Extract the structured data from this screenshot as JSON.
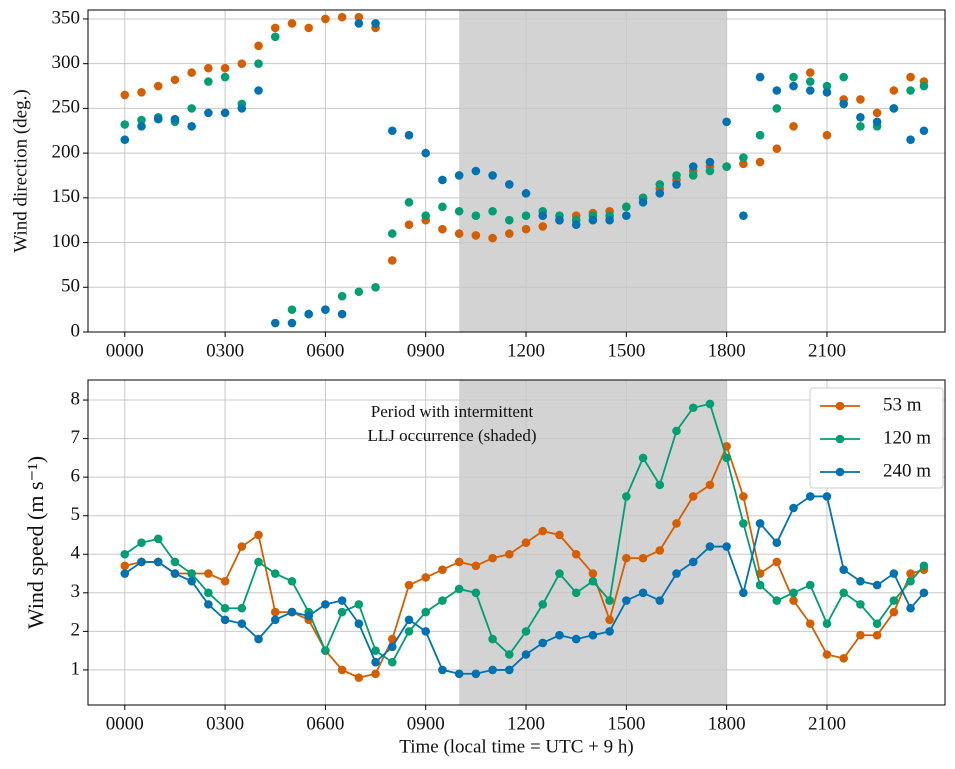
{
  "chart_data": [
    {
      "type": "scatter",
      "ylabel": "Wind direction (deg.)",
      "x": [
        0,
        0.5,
        1,
        1.5,
        2,
        2.5,
        3,
        3.5,
        4,
        4.5,
        5,
        5.5,
        6,
        6.5,
        7,
        7.5,
        8,
        8.5,
        9,
        9.5,
        10,
        10.5,
        11,
        11.5,
        12,
        12.5,
        13,
        13.5,
        14,
        14.5,
        15,
        15.5,
        16,
        16.5,
        17,
        17.5,
        18,
        18.5,
        19,
        19.5,
        20,
        20.5,
        21,
        21.5,
        22,
        22.5,
        23,
        23.5,
        23.9
      ],
      "xlim": [
        -1.1,
        24.53
      ],
      "xticks": [
        {
          "value": 0,
          "label": "0000"
        },
        {
          "value": 3,
          "label": "0300"
        },
        {
          "value": 6,
          "label": "0600"
        },
        {
          "value": 9,
          "label": "0900"
        },
        {
          "value": 12,
          "label": "1200"
        },
        {
          "value": 15,
          "label": "1500"
        },
        {
          "value": 18,
          "label": "1800"
        },
        {
          "value": 21,
          "label": "2100"
        }
      ],
      "ylim": [
        0,
        360
      ],
      "yticks": [
        0,
        50,
        100,
        150,
        200,
        250,
        300,
        350
      ],
      "grid": true,
      "shade": [
        10,
        18
      ],
      "series": [
        {
          "color": "#d55e00",
          "values": [
            265,
            268,
            275,
            282,
            290,
            295,
            295,
            300,
            320,
            340,
            345,
            340,
            350,
            352,
            352,
            340,
            80,
            120,
            125,
            115,
            110,
            108,
            105,
            110,
            115,
            118,
            125,
            130,
            133,
            135,
            140,
            150,
            160,
            170,
            180,
            185,
            185,
            188,
            190,
            205,
            230,
            290,
            220,
            260,
            260,
            245,
            270,
            285,
            280
          ]
        },
        {
          "color": "#009e73",
          "values": [
            232,
            237,
            240,
            235,
            250,
            280,
            285,
            255,
            300,
            330,
            25,
            20,
            25,
            40,
            45,
            50,
            110,
            145,
            130,
            140,
            135,
            130,
            135,
            125,
            130,
            135,
            130,
            125,
            130,
            130,
            140,
            150,
            165,
            175,
            175,
            180,
            185,
            195,
            220,
            250,
            285,
            280,
            275,
            285,
            230,
            230,
            250,
            270,
            275
          ]
        },
        {
          "color": "#0072b2",
          "values": [
            215,
            230,
            238,
            238,
            230,
            245,
            245,
            250,
            270,
            10,
            10,
            20,
            25,
            20,
            345,
            345,
            225,
            220,
            200,
            170,
            175,
            180,
            175,
            165,
            155,
            130,
            125,
            120,
            125,
            125,
            130,
            145,
            155,
            165,
            185,
            190,
            235,
            130,
            285,
            270,
            275,
            270,
            268,
            255,
            240,
            235,
            250,
            215,
            225
          ]
        }
      ]
    },
    {
      "type": "line",
      "ylabel": "Wind speed (m s⁻¹)",
      "xlabel": "Time (local time = UTC + 9 h)",
      "annotation": [
        "Period with intermittent",
        "LLJ occurrence (shaded)"
      ],
      "x": [
        0,
        0.5,
        1,
        1.5,
        2,
        2.5,
        3,
        3.5,
        4,
        4.5,
        5,
        5.5,
        6,
        6.5,
        7,
        7.5,
        8,
        8.5,
        9,
        9.5,
        10,
        10.5,
        11,
        11.5,
        12,
        12.5,
        13,
        13.5,
        14,
        14.5,
        15,
        15.5,
        16,
        16.5,
        17,
        17.5,
        18,
        18.5,
        19,
        19.5,
        20,
        20.5,
        21,
        21.5,
        22,
        22.5,
        23,
        23.5,
        23.9
      ],
      "xlim": [
        -1.1,
        24.53
      ],
      "xticks": [
        {
          "value": 0,
          "label": "0000"
        },
        {
          "value": 3,
          "label": "0300"
        },
        {
          "value": 6,
          "label": "0600"
        },
        {
          "value": 9,
          "label": "0900"
        },
        {
          "value": 12,
          "label": "1200"
        },
        {
          "value": 15,
          "label": "1500"
        },
        {
          "value": 18,
          "label": "1800"
        },
        {
          "value": 21,
          "label": "2100"
        }
      ],
      "ylim": [
        0.09,
        8.52
      ],
      "yticks": [
        1,
        2,
        3,
        4,
        5,
        6,
        7,
        8
      ],
      "grid": true,
      "shade": [
        10,
        18
      ],
      "legend": "upper right",
      "series": [
        {
          "name": "53 m",
          "color": "#d55e00",
          "values": [
            3.7,
            3.8,
            3.8,
            3.5,
            3.5,
            3.5,
            3.3,
            4.2,
            4.5,
            2.5,
            2.5,
            2.3,
            1.5,
            1.0,
            0.8,
            0.9,
            1.8,
            3.2,
            3.4,
            3.6,
            3.8,
            3.7,
            3.9,
            4.0,
            4.3,
            4.6,
            4.5,
            4.0,
            3.5,
            2.3,
            3.9,
            3.9,
            4.1,
            4.8,
            5.5,
            5.8,
            6.8,
            5.5,
            3.5,
            3.8,
            2.8,
            2.2,
            1.4,
            1.3,
            1.9,
            1.9,
            2.5,
            3.5,
            3.6
          ]
        },
        {
          "name": "120 m",
          "color": "#009e73",
          "values": [
            4.0,
            4.3,
            4.4,
            3.8,
            3.5,
            3.0,
            2.6,
            2.6,
            3.8,
            3.5,
            3.3,
            2.5,
            1.5,
            2.5,
            2.7,
            1.5,
            1.2,
            2.0,
            2.5,
            2.8,
            3.1,
            3.0,
            1.8,
            1.4,
            2.0,
            2.7,
            3.5,
            3.0,
            3.3,
            2.8,
            5.5,
            6.5,
            5.8,
            7.2,
            7.8,
            7.9,
            6.5,
            4.8,
            3.2,
            2.8,
            3.0,
            3.2,
            2.2,
            3.0,
            2.7,
            2.2,
            2.8,
            3.3,
            3.7
          ]
        },
        {
          "name": "240 m",
          "color": "#0072b2",
          "values": [
            3.5,
            3.8,
            3.8,
            3.5,
            3.3,
            2.7,
            2.3,
            2.2,
            1.8,
            2.3,
            2.5,
            2.4,
            2.7,
            2.8,
            2.2,
            1.2,
            1.6,
            2.3,
            2.0,
            1.0,
            0.9,
            0.9,
            1.0,
            1.0,
            1.4,
            1.7,
            1.9,
            1.8,
            1.9,
            2.0,
            2.8,
            3.0,
            2.8,
            3.5,
            3.8,
            4.2,
            4.2,
            3.0,
            4.8,
            4.3,
            5.2,
            5.5,
            5.5,
            3.6,
            3.3,
            3.2,
            3.5,
            2.6,
            3.0
          ]
        }
      ]
    }
  ]
}
